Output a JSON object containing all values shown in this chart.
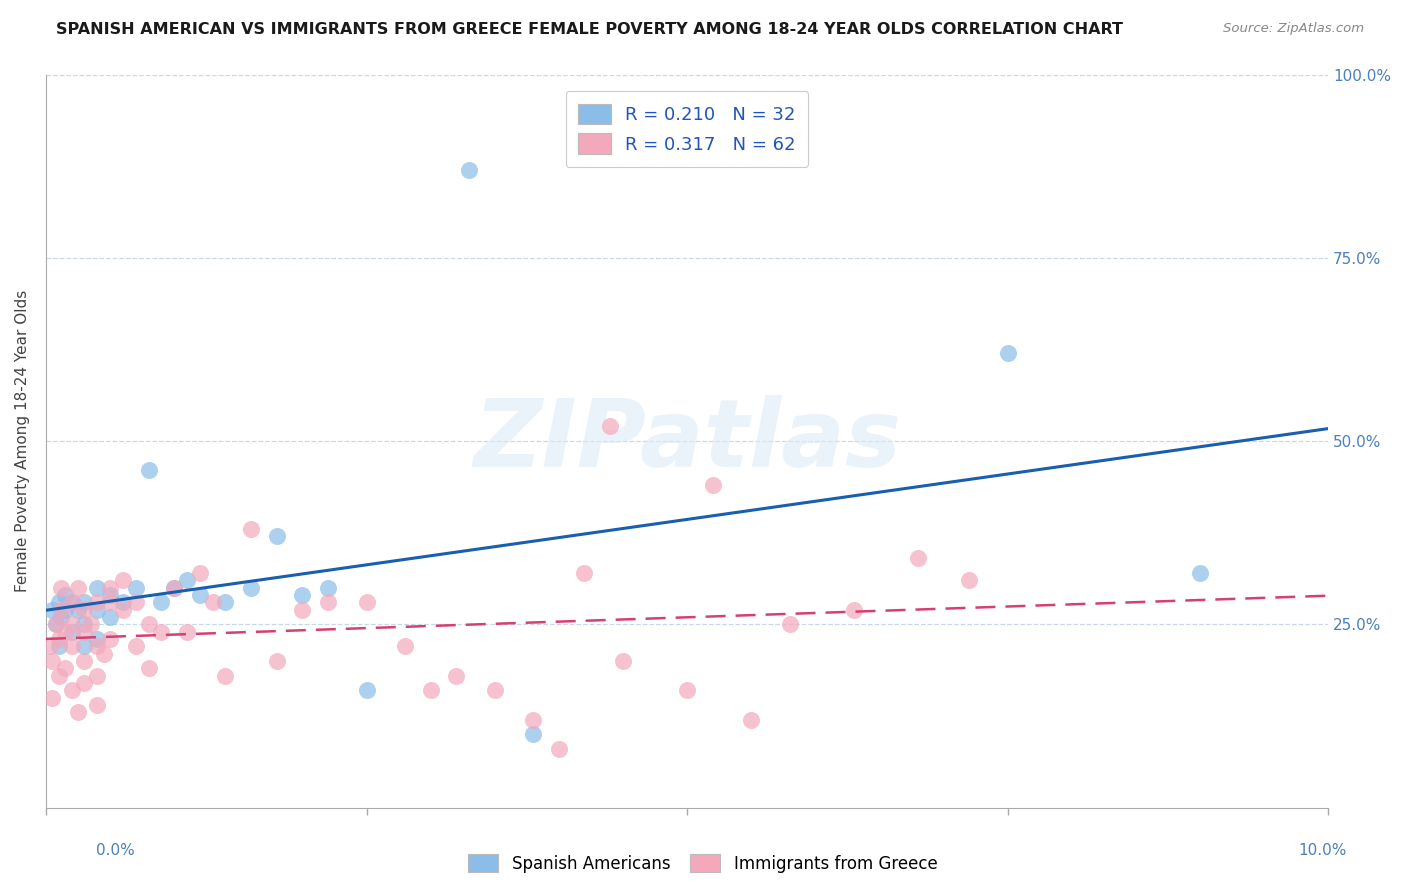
{
  "title": "SPANISH AMERICAN VS IMMIGRANTS FROM GREECE FEMALE POVERTY AMONG 18-24 YEAR OLDS CORRELATION CHART",
  "source": "Source: ZipAtlas.com",
  "ylabel": "Female Poverty Among 18-24 Year Olds",
  "xlim": [
    0.0,
    0.1
  ],
  "ylim": [
    0.0,
    1.0
  ],
  "watermark": "ZIPatlas",
  "color_blue": "#8bbde8",
  "color_pink": "#f4a8bc",
  "color_line_blue": "#1a5fad",
  "color_line_pink": "#d44070",
  "spanish_americans_x": [
    0.0005,
    0.0008,
    0.001,
    0.001,
    0.0012,
    0.0015,
    0.0015,
    0.002,
    0.002,
    0.0025,
    0.003,
    0.003,
    0.003,
    0.004,
    0.004,
    0.004,
    0.005,
    0.005,
    0.006,
    0.007,
    0.008,
    0.009,
    0.01,
    0.011,
    0.012,
    0.014,
    0.016,
    0.018,
    0.02,
    0.022,
    0.025,
    0.033,
    0.038,
    0.075,
    0.09
  ],
  "spanish_americans_y": [
    0.27,
    0.25,
    0.28,
    0.22,
    0.26,
    0.27,
    0.29,
    0.24,
    0.28,
    0.27,
    0.25,
    0.22,
    0.28,
    0.3,
    0.27,
    0.23,
    0.26,
    0.29,
    0.28,
    0.3,
    0.46,
    0.28,
    0.3,
    0.31,
    0.29,
    0.28,
    0.3,
    0.37,
    0.29,
    0.3,
    0.16,
    0.87,
    0.1,
    0.62,
    0.32
  ],
  "immigrants_greece_x": [
    0.0003,
    0.0005,
    0.0005,
    0.0008,
    0.001,
    0.001,
    0.0012,
    0.0012,
    0.0015,
    0.0015,
    0.002,
    0.002,
    0.002,
    0.002,
    0.0025,
    0.0025,
    0.003,
    0.003,
    0.003,
    0.003,
    0.0035,
    0.004,
    0.004,
    0.004,
    0.004,
    0.0045,
    0.005,
    0.005,
    0.005,
    0.006,
    0.006,
    0.007,
    0.007,
    0.008,
    0.008,
    0.009,
    0.01,
    0.011,
    0.012,
    0.013,
    0.014,
    0.016,
    0.018,
    0.02,
    0.022,
    0.025,
    0.028,
    0.03,
    0.032,
    0.035,
    0.038,
    0.04,
    0.042,
    0.045,
    0.05,
    0.055,
    0.058,
    0.063,
    0.068,
    0.072,
    0.052,
    0.044
  ],
  "immigrants_greece_y": [
    0.22,
    0.2,
    0.15,
    0.25,
    0.23,
    0.18,
    0.27,
    0.3,
    0.24,
    0.19,
    0.28,
    0.25,
    0.22,
    0.16,
    0.3,
    0.13,
    0.27,
    0.24,
    0.2,
    0.17,
    0.25,
    0.28,
    0.22,
    0.18,
    0.14,
    0.21,
    0.3,
    0.28,
    0.23,
    0.31,
    0.27,
    0.28,
    0.22,
    0.25,
    0.19,
    0.24,
    0.3,
    0.24,
    0.32,
    0.28,
    0.18,
    0.38,
    0.2,
    0.27,
    0.28,
    0.28,
    0.22,
    0.16,
    0.18,
    0.16,
    0.12,
    0.08,
    0.32,
    0.2,
    0.16,
    0.12,
    0.25,
    0.27,
    0.34,
    0.31,
    0.44,
    0.52
  ]
}
